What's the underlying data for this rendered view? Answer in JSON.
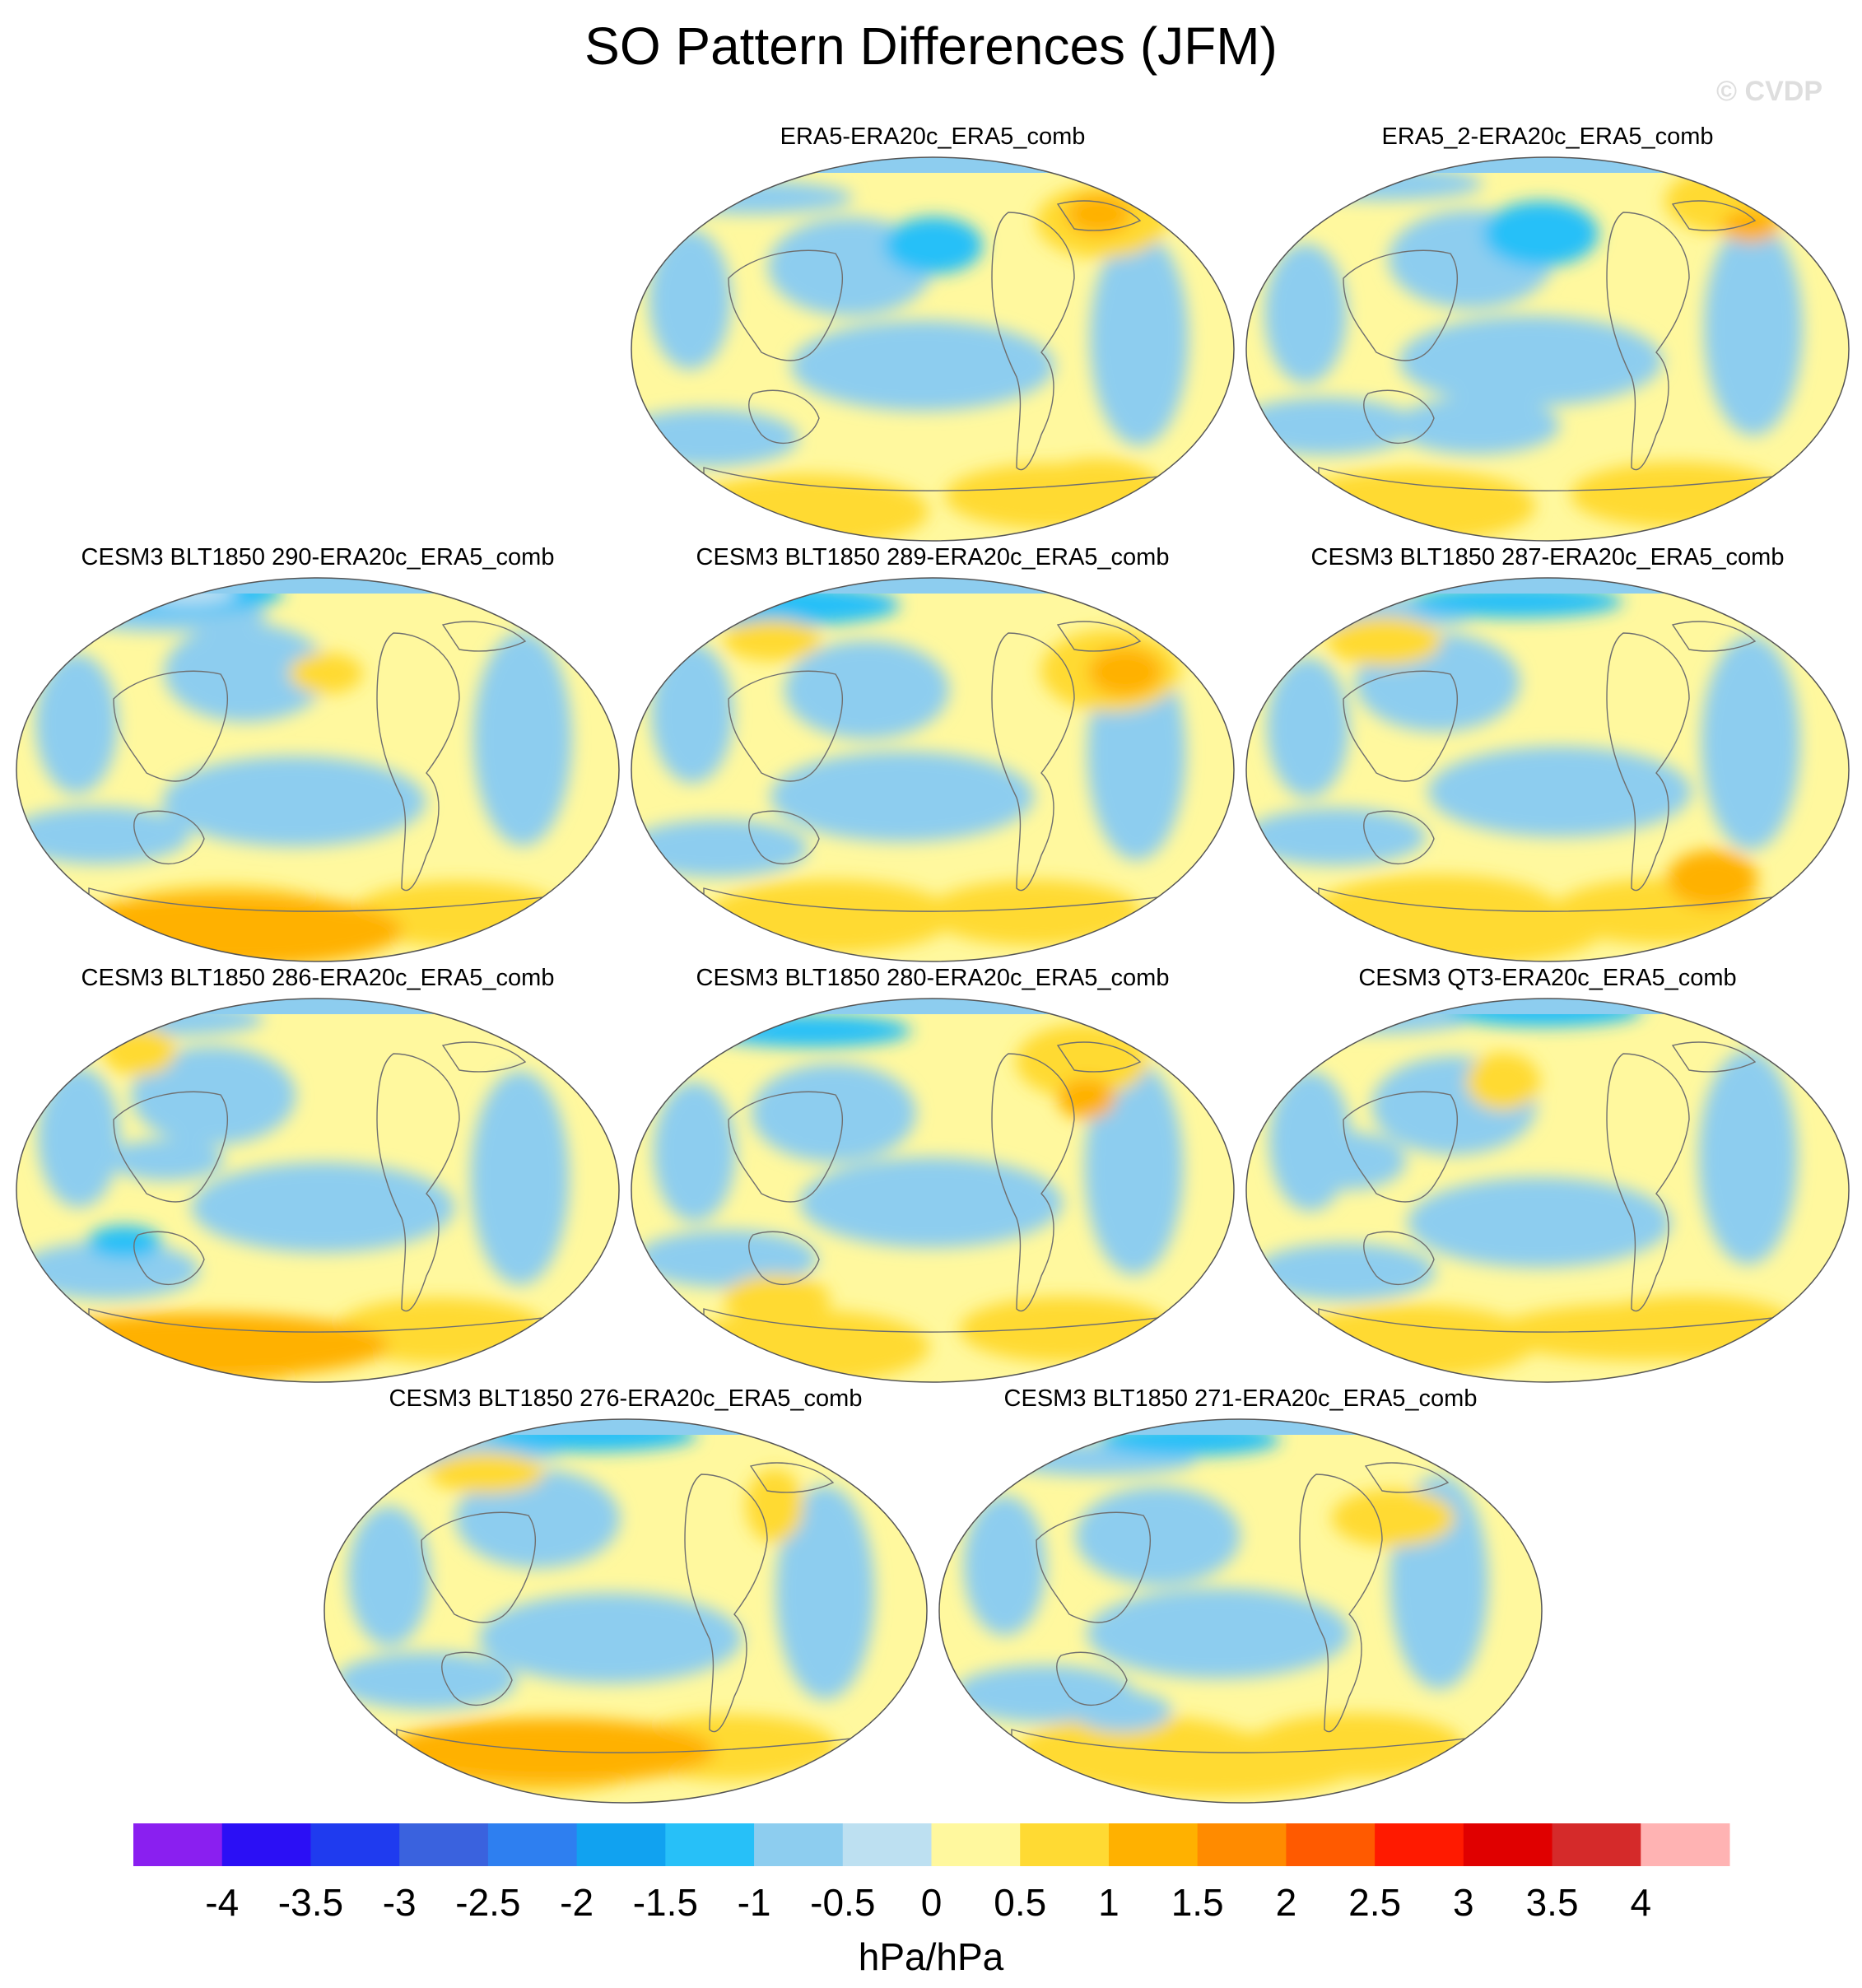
{
  "title": "SO Pattern Differences (JFM)",
  "watermark": "© CVDP",
  "chart_data": {
    "type": "heatmap",
    "description": "SLP southern oscillation pattern differences, panel minus ERA20c_ERA5_comb",
    "projection": "Robinson-like global",
    "panels": [
      {
        "title": "ERA5-ERA20c_ERA5_comb",
        "row": 0,
        "col": 1,
        "variant": 0
      },
      {
        "title": "ERA5_2-ERA20c_ERA5_comb",
        "row": 0,
        "col": 2,
        "variant": 1
      },
      {
        "title": "CESM3 BLT1850 290-ERA20c_ERA5_comb",
        "row": 1,
        "col": 0,
        "variant": 2
      },
      {
        "title": "CESM3 BLT1850 289-ERA20c_ERA5_comb",
        "row": 1,
        "col": 1,
        "variant": 3
      },
      {
        "title": "CESM3 BLT1850 287-ERA20c_ERA5_comb",
        "row": 1,
        "col": 2,
        "variant": 4
      },
      {
        "title": "CESM3 BLT1850 286-ERA20c_ERA5_comb",
        "row": 2,
        "col": 0,
        "variant": 5
      },
      {
        "title": "CESM3 BLT1850 280-ERA20c_ERA5_comb",
        "row": 2,
        "col": 1,
        "variant": 6
      },
      {
        "title": "CESM3 QT3-ERA20c_ERA5_comb",
        "row": 2,
        "col": 2,
        "variant": 7
      },
      {
        "title": "CESM3 BLT1850 276-ERA20c_ERA5_comb",
        "row": 3,
        "col": 0.5,
        "variant": 8
      },
      {
        "title": "CESM3 BLT1850 271-ERA20c_ERA5_comb",
        "row": 3,
        "col": 1.5,
        "variant": 9
      }
    ],
    "colorbar": {
      "units": "hPa/hPa",
      "ticks": [
        "-4",
        "-3.5",
        "-3",
        "-2.5",
        "-2",
        "-1.5",
        "-1",
        "-0.5",
        "0",
        "0.5",
        "1",
        "1.5",
        "2",
        "2.5",
        "3",
        "3.5",
        "4"
      ],
      "colors": [
        "#8a1ff0",
        "#2b0ff5",
        "#1f3bef",
        "#3a62de",
        "#2e7ff0",
        "#11a2f0",
        "#27c0f8",
        "#8dcdef",
        "#bde0f1",
        "#fff89e",
        "#ffda33",
        "#ffb100",
        "#ff8b00",
        "#ff5a00",
        "#ff1a00",
        "#e00000",
        "#d52a2a",
        "#ffb3b3"
      ]
    }
  }
}
